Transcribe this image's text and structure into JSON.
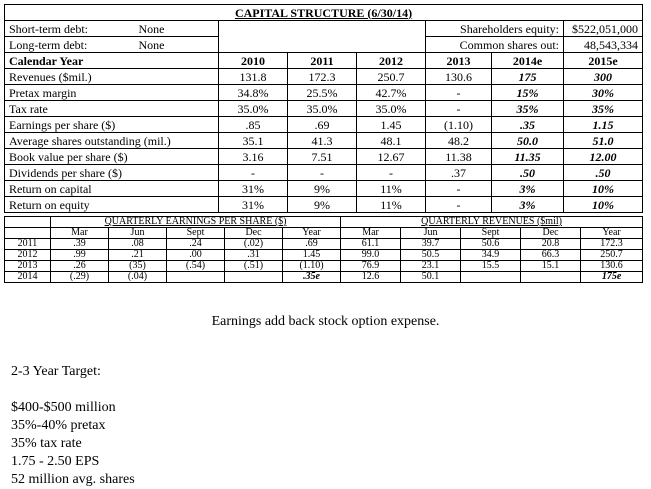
{
  "capital_structure": {
    "title": "CAPITAL STRUCTURE (6/30/14)",
    "short_term_debt_label": "Short-term debt:",
    "short_term_debt_value": "None",
    "long_term_debt_label": "Long-term debt:",
    "long_term_debt_value": "None",
    "equity_label": "Shareholders equity:",
    "equity_value": "$522,051,000",
    "shares_label": "Common shares out:",
    "shares_value": "48,543,334"
  },
  "annual": {
    "header": [
      "Calendar Year",
      "2010",
      "2011",
      "2012",
      "2013",
      "2014e",
      "2015e"
    ],
    "rows": [
      {
        "label": "Revenues ($mil.)",
        "values": [
          "131.8",
          "172.3",
          "250.7",
          "130.6",
          "175",
          "300"
        ]
      },
      {
        "label": "Pretax margin",
        "values": [
          "34.8%",
          "25.5%",
          "42.7%",
          "-",
          "15%",
          "30%"
        ]
      },
      {
        "label": "Tax rate",
        "values": [
          "35.0%",
          "35.0%",
          "35.0%",
          "-",
          "35%",
          "35%"
        ]
      },
      {
        "label": "Earnings per share ($)",
        "values": [
          ".85",
          ".69",
          "1.45",
          "(1.10)",
          ".35",
          "1.15"
        ]
      },
      {
        "label": "Average shares outstanding (mil.)",
        "values": [
          "35.1",
          "41.3",
          "48.1",
          "48.2",
          "50.0",
          "51.0"
        ]
      },
      {
        "label": "Book value per share ($)",
        "values": [
          "3.16",
          "7.51",
          "12.67",
          "11.38",
          "11.35",
          "12.00"
        ]
      },
      {
        "label": "Dividends per share ($)",
        "values": [
          "-",
          "-",
          "-",
          ".37",
          ".50",
          ".50"
        ]
      },
      {
        "label": "Return on capital",
        "values": [
          "31%",
          "9%",
          "11%",
          "-",
          "3%",
          "10%"
        ]
      },
      {
        "label": "Return on equity",
        "values": [
          "31%",
          "9%",
          "11%",
          "-",
          "3%",
          "10%"
        ]
      }
    ]
  },
  "quarterly": {
    "eps_title": "QUARTERLY EARNINGS PER SHARE ($)",
    "rev_title": "QUARTERLY REVENUES ($mil)",
    "columns": [
      "Mar",
      "Jun",
      "Sept",
      "Dec",
      "Year",
      "Mar",
      "Jun",
      "Sept",
      "Dec",
      "Year"
    ],
    "rows": [
      {
        "year": "2011",
        "values": [
          ".39",
          ".08",
          ".24",
          "(.02)",
          ".69",
          "61.1",
          "39.7",
          "50.6",
          "20.8",
          "172.3"
        ]
      },
      {
        "year": "2012",
        "values": [
          ".99",
          ".21",
          ".00",
          ".31",
          "1.45",
          "99.0",
          "50.5",
          "34.9",
          "66.3",
          "250.7"
        ]
      },
      {
        "year": "2013",
        "values": [
          ".26",
          "(35)",
          "(.54)",
          "(.51)",
          "(1.10)",
          "76.9",
          "23.1",
          "15.5",
          "15.1",
          "130.6"
        ]
      },
      {
        "year": "2014",
        "values": [
          "(.29)",
          "(.04)",
          "",
          "",
          ".35e",
          "12.6",
          "50.1",
          "",
          "",
          "175e"
        ]
      }
    ]
  },
  "note": "Earnings add back stock option expense.",
  "target": {
    "heading": "2-3 Year Target:",
    "lines": [
      "$400-$500 million",
      "35%-40% pretax",
      "35% tax rate",
      "1.75 - 2.50 EPS",
      "52 million avg. shares"
    ]
  }
}
